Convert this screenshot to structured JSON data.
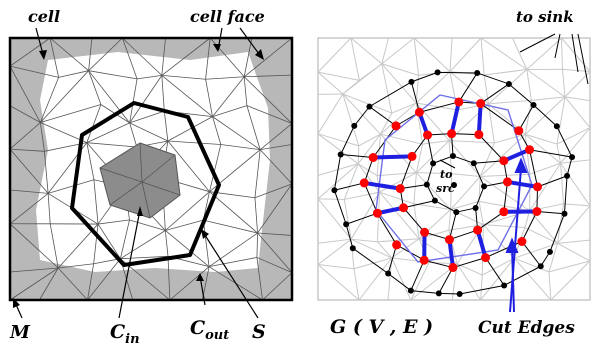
{
  "left_panel": {
    "labels": {
      "cell": "cell",
      "cell_face": "cell face",
      "m": "M",
      "c_in_main": "C",
      "c_in_sub": "in",
      "c_out_main": "C",
      "c_out_sub": "out",
      "s": "S"
    }
  },
  "right_panel": {
    "labels": {
      "to_sink": "to sink",
      "to_src_line1": "to",
      "to_src_line2": "src",
      "graph_title": "G ( V , E )",
      "cut_edges": "Cut Edges"
    }
  },
  "colors": {
    "cell_fill": "#b8b8b8",
    "inner_fill": "#8c8c8c",
    "mesh_line": "#555555",
    "graph_edge": "#c8c8c8",
    "graph_node": "#000000",
    "cut_node": "#ff0000",
    "cut_edge": "#1f1fe0",
    "cut_label": "#2020d0"
  }
}
